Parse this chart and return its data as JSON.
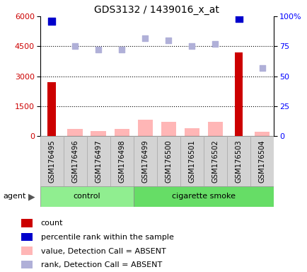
{
  "title": "GDS3132 / 1439016_x_at",
  "samples": [
    "GSM176495",
    "GSM176496",
    "GSM176497",
    "GSM176498",
    "GSM176499",
    "GSM176500",
    "GSM176501",
    "GSM176502",
    "GSM176503",
    "GSM176504"
  ],
  "n_control": 4,
  "count_values": [
    2700,
    0,
    0,
    0,
    0,
    0,
    0,
    0,
    4200,
    0
  ],
  "value_absent": [
    null,
    350,
    250,
    350,
    800,
    700,
    380,
    700,
    null,
    200
  ],
  "rank_absent_left": [
    null,
    4500,
    4350,
    4350,
    4900,
    4800,
    4500,
    4600,
    null,
    3400
  ],
  "percentile_rank_left": [
    5750,
    null,
    null,
    null,
    null,
    null,
    null,
    null,
    5900,
    null
  ],
  "ylim_left": [
    0,
    6000
  ],
  "ylim_right": [
    0,
    100
  ],
  "yticks_left": [
    0,
    1500,
    3000,
    4500,
    6000
  ],
  "yticks_right": [
    0,
    25,
    50,
    75,
    100
  ],
  "ytick_labels_right": [
    "0",
    "25",
    "50",
    "75",
    "100%"
  ],
  "count_color": "#cc0000",
  "percentile_color": "#0000cc",
  "value_absent_color": "#ffb6b6",
  "rank_absent_color": "#b0b0d8",
  "control_color": "#90ee90",
  "smoke_color": "#66dd66",
  "sample_bg_color": "#d3d3d3",
  "sample_border_color": "#aaaaaa",
  "plot_bg": "#ffffff",
  "grid_color": "#000000",
  "agent_label": "agent",
  "legend_labels": [
    "count",
    "percentile rank within the sample",
    "value, Detection Call = ABSENT",
    "rank, Detection Call = ABSENT"
  ]
}
